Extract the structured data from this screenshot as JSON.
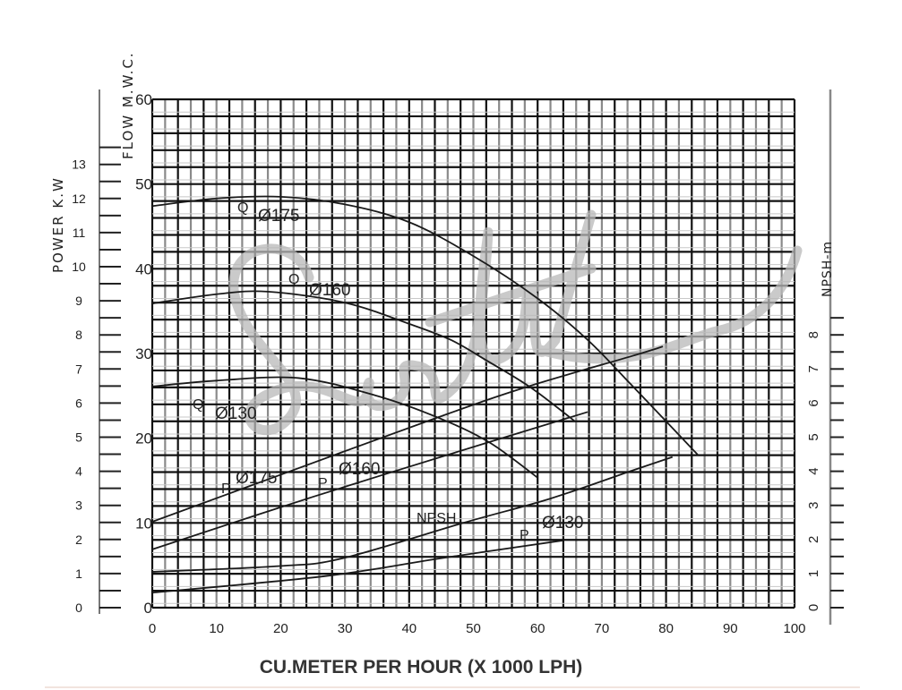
{
  "chart_data": {
    "type": "line",
    "title": "",
    "xlabel": "CU.METER PER HOUR (X 1000 LPH)",
    "ylabel_left_outer": "POWER K.W",
    "ylabel_left_inner": "FLOW M.W.C.",
    "ylabel_right": "NPSH-m",
    "xlim": [
      0,
      100
    ],
    "ylim_head": [
      0,
      60
    ],
    "ylim_power": [
      0,
      13
    ],
    "ylim_npsh": [
      0,
      8
    ],
    "grid": true,
    "x_ticks": [
      "0",
      "10",
      "20",
      "30",
      "40",
      "50",
      "60",
      "70",
      "80",
      "90",
      "100"
    ],
    "head_ticks": [
      "0",
      "10",
      "20",
      "30",
      "40",
      "50",
      "60"
    ],
    "power_ticks": [
      "0",
      "1",
      "2",
      "3",
      "4",
      "5",
      "6",
      "7",
      "8",
      "9",
      "10",
      "11",
      "12",
      "13"
    ],
    "npsh_ticks": [
      "0",
      "1",
      "2",
      "3",
      "4",
      "5",
      "6",
      "7",
      "8"
    ],
    "series": [
      {
        "name": "Q Ø175",
        "axis": "head",
        "label_q": "Q",
        "label_d": "Ø175",
        "points": [
          [
            0,
            47.4
          ],
          [
            10,
            48.3
          ],
          [
            20,
            48.5
          ],
          [
            30,
            47.6
          ],
          [
            40,
            45.5
          ],
          [
            50,
            41.5
          ],
          [
            60,
            36.5
          ],
          [
            67.8,
            31.6
          ],
          [
            74.6,
            26.3
          ],
          [
            80,
            22
          ],
          [
            85,
            18
          ]
        ]
      },
      {
        "name": "Q Ø160",
        "axis": "head",
        "label_q": "Q",
        "label_d": "Ø160",
        "points": [
          [
            0,
            35.9
          ],
          [
            10,
            37
          ],
          [
            18,
            37.3
          ],
          [
            30,
            36
          ],
          [
            40,
            33.5
          ],
          [
            46.5,
            31.6
          ],
          [
            52,
            29.2
          ],
          [
            58.9,
            26
          ],
          [
            65.8,
            22
          ]
        ]
      },
      {
        "name": "Q Ø130",
        "axis": "head",
        "label_q": "Q",
        "label_d": "Ø130",
        "points": [
          [
            0,
            26.1
          ],
          [
            10,
            26.8
          ],
          [
            22.8,
            27.1
          ],
          [
            35,
            25
          ],
          [
            44.6,
            22.4
          ],
          [
            52.5,
            19.5
          ],
          [
            59.9,
            15.4
          ]
        ]
      },
      {
        "name": "P Ø175",
        "axis": "power",
        "label_q": "P",
        "label_d": "Ø175",
        "points": [
          [
            0,
            2.52
          ],
          [
            20,
            3.9
          ],
          [
            44.6,
            5.59
          ],
          [
            58.4,
            6.48
          ],
          [
            74.7,
            7.38
          ],
          [
            79.5,
            7.66
          ]
        ]
      },
      {
        "name": "P Ø160",
        "axis": "power",
        "label_q": "P",
        "label_d": "Ø160",
        "points": [
          [
            0,
            1.71
          ],
          [
            25,
            3.25
          ],
          [
            52.5,
            4.86
          ],
          [
            67.8,
            5.74
          ]
        ]
      },
      {
        "name": "P Ø130",
        "axis": "power",
        "label_q": "P",
        "label_d": "Ø130",
        "points": [
          [
            0,
            0.44
          ],
          [
            26.7,
            0.92
          ],
          [
            45,
            1.45
          ],
          [
            63.9,
            1.97
          ]
        ]
      },
      {
        "name": "NPSH",
        "axis": "npsh",
        "label_q": "NPSH",
        "label_d": "",
        "points": [
          [
            0,
            1.05
          ],
          [
            19.8,
            1.22
          ],
          [
            29.7,
            1.45
          ],
          [
            48.5,
            2.49
          ],
          [
            62,
            3.2
          ],
          [
            74.7,
            4.02
          ],
          [
            81,
            4.42
          ]
        ]
      }
    ]
  },
  "watermark": "Sewlik",
  "colors": {
    "grid_dark": "#111111",
    "grid_light": "#8a8a8a",
    "curve": "#1a1a1a",
    "watermark": "#b8b8b8"
  }
}
